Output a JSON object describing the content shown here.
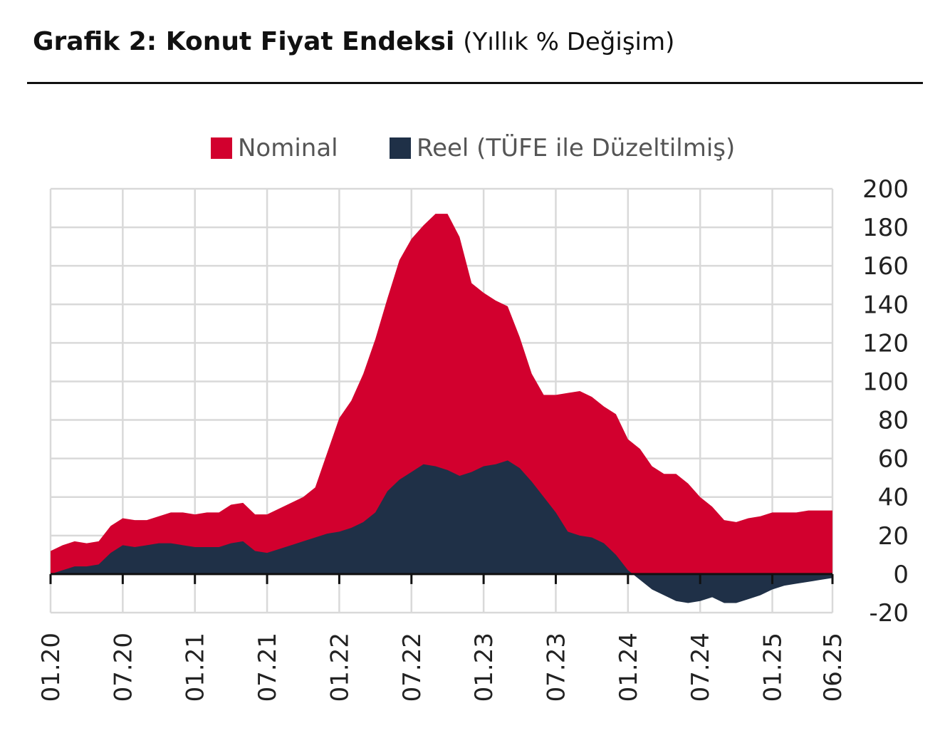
{
  "header": {
    "title_bold": "Grafik 2: Konut Fiyat Endeksi",
    "title_rest": "(Yıllık % Değişim)"
  },
  "chart_data": {
    "type": "area",
    "title": "Grafik 2: Konut Fiyat Endeksi (Yıllık % Değişim)",
    "x_tick_labels": [
      "01.20",
      "07.20",
      "01.21",
      "07.21",
      "01.22",
      "07.22",
      "01.23",
      "07.23",
      "01.24",
      "07.24",
      "01.25",
      "06.25"
    ],
    "x_tick_positions_month_index": [
      0,
      6,
      12,
      18,
      24,
      30,
      36,
      42,
      48,
      54,
      60,
      65
    ],
    "ylim": [
      -20,
      200
    ],
    "y_ticks": [
      -20,
      0,
      20,
      40,
      60,
      80,
      100,
      120,
      140,
      160,
      180,
      200
    ],
    "grid": true,
    "legend_position": "top",
    "x_month_index": [
      0,
      1,
      2,
      3,
      4,
      5,
      6,
      7,
      8,
      9,
      10,
      11,
      12,
      13,
      14,
      15,
      16,
      17,
      18,
      19,
      20,
      21,
      22,
      23,
      24,
      25,
      26,
      27,
      28,
      29,
      30,
      31,
      32,
      33,
      34,
      35,
      36,
      37,
      38,
      39,
      40,
      41,
      42,
      43,
      44,
      45,
      46,
      47,
      48,
      49,
      50,
      51,
      52,
      53,
      54,
      55,
      56,
      57,
      58,
      59,
      60,
      61,
      62,
      63,
      64,
      65
    ],
    "x_dates": [
      "01.20",
      "02.20",
      "03.20",
      "04.20",
      "05.20",
      "06.20",
      "07.20",
      "08.20",
      "09.20",
      "10.20",
      "11.20",
      "12.20",
      "01.21",
      "02.21",
      "03.21",
      "04.21",
      "05.21",
      "06.21",
      "07.21",
      "08.21",
      "09.21",
      "10.21",
      "11.21",
      "12.21",
      "01.22",
      "02.22",
      "03.22",
      "04.22",
      "05.22",
      "06.22",
      "07.22",
      "08.22",
      "09.22",
      "10.22",
      "11.22",
      "12.22",
      "01.23",
      "02.23",
      "03.23",
      "04.23",
      "05.23",
      "06.23",
      "07.23",
      "08.23",
      "09.23",
      "10.23",
      "11.23",
      "12.23",
      "01.24",
      "02.24",
      "03.24",
      "04.24",
      "05.24",
      "06.24",
      "07.24",
      "08.24",
      "09.24",
      "10.24",
      "11.24",
      "12.24",
      "01.25",
      "02.25",
      "03.25",
      "04.25",
      "05.25",
      "06.25"
    ],
    "series": [
      {
        "name": "Nominal",
        "color": "#d2002e",
        "values": [
          12,
          15,
          17,
          16,
          17,
          25,
          29,
          28,
          28,
          30,
          32,
          32,
          31,
          32,
          32,
          36,
          37,
          31,
          31,
          34,
          37,
          40,
          45,
          63,
          81,
          90,
          104,
          122,
          143,
          163,
          174,
          181,
          187,
          187,
          175,
          151,
          146,
          142,
          139,
          123,
          104,
          93,
          93,
          94,
          95,
          92,
          87,
          83,
          70,
          65,
          56,
          52,
          52,
          47,
          40,
          35,
          28,
          27,
          29,
          30,
          32,
          32,
          32,
          33,
          33,
          33
        ]
      },
      {
        "name": "Reel (TÜFE ile Düzeltilmiş)",
        "color": "#1f3047",
        "values": [
          0,
          2,
          4,
          4,
          5,
          11,
          15,
          14,
          15,
          16,
          16,
          15,
          14,
          14,
          14,
          16,
          17,
          12,
          11,
          13,
          15,
          17,
          19,
          21,
          22,
          24,
          27,
          32,
          43,
          49,
          53,
          57,
          56,
          54,
          51,
          53,
          56,
          57,
          59,
          55,
          48,
          40,
          32,
          22,
          20,
          19,
          16,
          10,
          2,
          -3,
          -8,
          -11,
          -14,
          -15,
          -14,
          -12,
          -15,
          -15,
          -13,
          -11,
          -8,
          -6,
          -5,
          -4,
          -3,
          -2
        ]
      }
    ]
  }
}
